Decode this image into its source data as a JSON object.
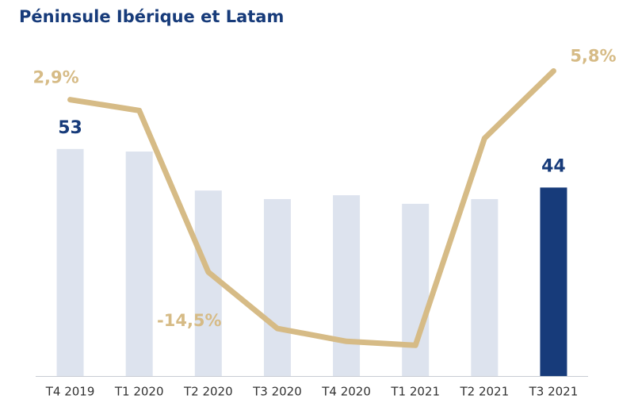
{
  "chart_data": {
    "type": "bar_line",
    "title": "Péninsule Ibérique et Latam",
    "categories": [
      "T4 2019",
      "T1 2020",
      "T2 2020",
      "T3 2020",
      "T4 2020",
      "T1 2021",
      "T2 2021",
      "T3 2021"
    ],
    "ylim": [
      0,
      80
    ],
    "y2lim": [
      -25,
      9.6
    ],
    "series": [
      {
        "type": "bar",
        "colors": [
          "#dde3ee",
          "#dde3ee",
          "#dde3ee",
          "#dde3ee",
          "#dde3ee",
          "#dde3ee",
          "#dde3ee",
          "#173b7a"
        ],
        "values": [
          53,
          52.4,
          43.3,
          41.3,
          42.2,
          40.2,
          41.3,
          44
        ],
        "value_labels": [
          "53",
          null,
          null,
          null,
          null,
          null,
          null,
          "44"
        ]
      },
      {
        "type": "line",
        "axis": "y2",
        "color": "#d6bb86",
        "values": [
          2.9,
          1.8,
          -14.5,
          -20.2,
          -21.5,
          -21.9,
          -1.0,
          5.8
        ],
        "value_labels": [
          "2,9%",
          null,
          "-14,5%",
          null,
          null,
          null,
          null,
          "5,8%"
        ]
      }
    ]
  }
}
